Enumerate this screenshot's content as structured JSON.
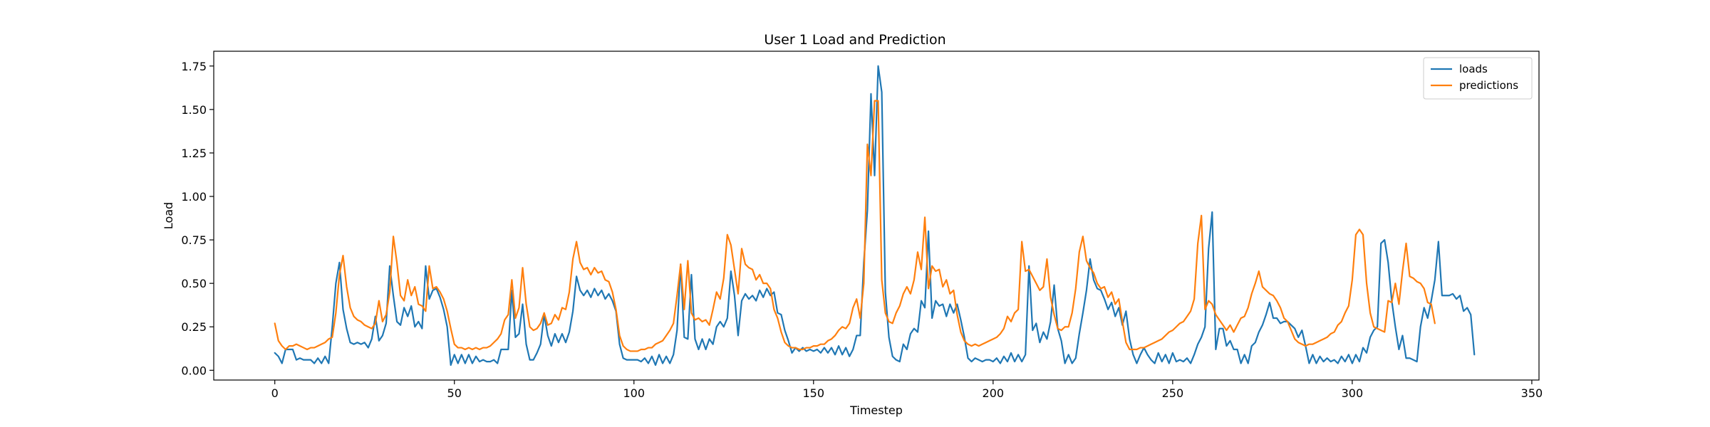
{
  "chart_data": {
    "type": "line",
    "title": "User 1 Load and Prediction",
    "xlabel": "Timestep",
    "ylabel": "Load",
    "xlim": [
      -17,
      352
    ],
    "ylim": [
      -0.056,
      1.835
    ],
    "xticks": [
      0,
      50,
      100,
      150,
      200,
      250,
      300,
      350
    ],
    "yticks": [
      0.0,
      0.25,
      0.5,
      0.75,
      1.0,
      1.25,
      1.5,
      1.75
    ],
    "grid": false,
    "legend_position": "top-right",
    "series": [
      {
        "name": "loads",
        "color": "#1f77b4",
        "x_start": 0,
        "x_step": 1,
        "values": [
          0.1,
          0.08,
          0.04,
          0.12,
          0.12,
          0.12,
          0.06,
          0.07,
          0.06,
          0.06,
          0.06,
          0.04,
          0.07,
          0.04,
          0.08,
          0.04,
          0.25,
          0.5,
          0.62,
          0.35,
          0.24,
          0.16,
          0.15,
          0.16,
          0.15,
          0.16,
          0.13,
          0.18,
          0.31,
          0.17,
          0.2,
          0.27,
          0.6,
          0.43,
          0.28,
          0.26,
          0.36,
          0.31,
          0.37,
          0.25,
          0.28,
          0.24,
          0.6,
          0.41,
          0.46,
          0.47,
          0.42,
          0.35,
          0.25,
          0.03,
          0.09,
          0.04,
          0.09,
          0.04,
          0.09,
          0.04,
          0.08,
          0.05,
          0.06,
          0.05,
          0.05,
          0.06,
          0.04,
          0.12,
          0.12,
          0.12,
          0.46,
          0.19,
          0.21,
          0.38,
          0.15,
          0.06,
          0.06,
          0.1,
          0.15,
          0.32,
          0.2,
          0.14,
          0.21,
          0.16,
          0.21,
          0.16,
          0.22,
          0.34,
          0.54,
          0.46,
          0.43,
          0.46,
          0.42,
          0.47,
          0.43,
          0.46,
          0.41,
          0.44,
          0.4,
          0.34,
          0.15,
          0.07,
          0.06,
          0.06,
          0.06,
          0.06,
          0.05,
          0.07,
          0.04,
          0.08,
          0.03,
          0.09,
          0.04,
          0.08,
          0.04,
          0.09,
          0.23,
          0.61,
          0.19,
          0.18,
          0.55,
          0.18,
          0.12,
          0.18,
          0.12,
          0.18,
          0.15,
          0.25,
          0.28,
          0.25,
          0.3,
          0.57,
          0.43,
          0.2,
          0.4,
          0.44,
          0.41,
          0.43,
          0.4,
          0.46,
          0.42,
          0.47,
          0.43,
          0.45,
          0.33,
          0.32,
          0.23,
          0.17,
          0.1,
          0.13,
          0.11,
          0.13,
          0.11,
          0.12,
          0.11,
          0.12,
          0.1,
          0.13,
          0.1,
          0.13,
          0.09,
          0.14,
          0.09,
          0.13,
          0.08,
          0.12,
          0.2,
          0.2,
          0.62,
          0.92,
          1.59,
          1.12,
          1.75,
          1.6,
          0.45,
          0.19,
          0.08,
          0.06,
          0.05,
          0.15,
          0.12,
          0.21,
          0.24,
          0.22,
          0.4,
          0.36,
          0.8,
          0.3,
          0.4,
          0.37,
          0.38,
          0.31,
          0.38,
          0.33,
          0.38,
          0.29,
          0.19,
          0.07,
          0.05,
          0.07,
          0.06,
          0.05,
          0.06,
          0.06,
          0.05,
          0.07,
          0.04,
          0.08,
          0.05,
          0.1,
          0.05,
          0.09,
          0.05,
          0.09,
          0.6,
          0.23,
          0.27,
          0.16,
          0.22,
          0.18,
          0.28,
          0.49,
          0.24,
          0.17,
          0.04,
          0.09,
          0.04,
          0.07,
          0.21,
          0.33,
          0.46,
          0.64,
          0.52,
          0.47,
          0.46,
          0.41,
          0.35,
          0.39,
          0.31,
          0.36,
          0.26,
          0.34,
          0.18,
          0.09,
          0.04,
          0.09,
          0.13,
          0.09,
          0.06,
          0.04,
          0.1,
          0.05,
          0.09,
          0.04,
          0.1,
          0.05,
          0.06,
          0.05,
          0.07,
          0.04,
          0.09,
          0.15,
          0.19,
          0.25,
          0.7,
          0.91,
          0.12,
          0.24,
          0.24,
          0.14,
          0.17,
          0.12,
          0.12,
          0.04,
          0.09,
          0.04,
          0.14,
          0.16,
          0.22,
          0.26,
          0.32,
          0.39,
          0.3,
          0.3,
          0.27,
          0.28,
          0.28,
          0.26,
          0.24,
          0.19,
          0.23,
          0.14,
          0.04,
          0.09,
          0.04,
          0.08,
          0.05,
          0.07,
          0.05,
          0.06,
          0.04,
          0.08,
          0.05,
          0.09,
          0.04,
          0.09,
          0.05,
          0.13,
          0.1,
          0.19,
          0.23,
          0.25,
          0.73,
          0.75,
          0.62,
          0.4,
          0.25,
          0.12,
          0.2,
          0.07,
          0.07,
          0.06,
          0.05,
          0.25,
          0.36,
          0.3,
          0.4,
          0.52,
          0.74,
          0.43,
          0.43,
          0.43,
          0.44,
          0.41,
          0.43,
          0.34,
          0.36,
          0.32,
          0.09
        ]
      },
      {
        "name": "predictions",
        "color": "#ff7f0e",
        "x_start": 0,
        "x_step": 1,
        "values": [
          0.27,
          0.17,
          0.14,
          0.12,
          0.14,
          0.14,
          0.15,
          0.14,
          0.13,
          0.12,
          0.13,
          0.13,
          0.14,
          0.15,
          0.16,
          0.18,
          0.19,
          0.33,
          0.55,
          0.66,
          0.48,
          0.36,
          0.31,
          0.29,
          0.28,
          0.26,
          0.25,
          0.24,
          0.27,
          0.4,
          0.28,
          0.32,
          0.45,
          0.77,
          0.62,
          0.43,
          0.4,
          0.52,
          0.43,
          0.48,
          0.38,
          0.37,
          0.34,
          0.6,
          0.47,
          0.48,
          0.45,
          0.41,
          0.34,
          0.24,
          0.15,
          0.13,
          0.13,
          0.12,
          0.13,
          0.12,
          0.13,
          0.12,
          0.13,
          0.13,
          0.14,
          0.16,
          0.18,
          0.21,
          0.29,
          0.32,
          0.52,
          0.3,
          0.36,
          0.59,
          0.38,
          0.25,
          0.23,
          0.24,
          0.27,
          0.33,
          0.26,
          0.27,
          0.32,
          0.29,
          0.36,
          0.35,
          0.45,
          0.64,
          0.74,
          0.62,
          0.58,
          0.59,
          0.55,
          0.59,
          0.56,
          0.57,
          0.52,
          0.51,
          0.45,
          0.35,
          0.2,
          0.14,
          0.12,
          0.11,
          0.11,
          0.11,
          0.12,
          0.12,
          0.13,
          0.13,
          0.15,
          0.16,
          0.17,
          0.2,
          0.23,
          0.27,
          0.43,
          0.61,
          0.35,
          0.63,
          0.33,
          0.29,
          0.3,
          0.28,
          0.29,
          0.26,
          0.35,
          0.45,
          0.41,
          0.53,
          0.78,
          0.72,
          0.58,
          0.44,
          0.7,
          0.61,
          0.59,
          0.58,
          0.52,
          0.55,
          0.5,
          0.5,
          0.47,
          0.35,
          0.3,
          0.22,
          0.16,
          0.14,
          0.13,
          0.13,
          0.12,
          0.12,
          0.13,
          0.13,
          0.14,
          0.14,
          0.15,
          0.15,
          0.17,
          0.18,
          0.2,
          0.23,
          0.25,
          0.24,
          0.27,
          0.36,
          0.41,
          0.3,
          0.5,
          1.3,
          1.12,
          1.55,
          1.55,
          0.52,
          0.33,
          0.28,
          0.27,
          0.33,
          0.37,
          0.44,
          0.48,
          0.44,
          0.52,
          0.68,
          0.58,
          0.88,
          0.47,
          0.6,
          0.57,
          0.58,
          0.48,
          0.52,
          0.44,
          0.46,
          0.32,
          0.22,
          0.17,
          0.15,
          0.14,
          0.15,
          0.14,
          0.15,
          0.16,
          0.17,
          0.18,
          0.19,
          0.21,
          0.24,
          0.31,
          0.28,
          0.33,
          0.35,
          0.74,
          0.57,
          0.58,
          0.54,
          0.5,
          0.46,
          0.48,
          0.64,
          0.42,
          0.32,
          0.24,
          0.23,
          0.25,
          0.25,
          0.33,
          0.47,
          0.68,
          0.77,
          0.63,
          0.59,
          0.56,
          0.5,
          0.47,
          0.48,
          0.42,
          0.45,
          0.38,
          0.41,
          0.28,
          0.16,
          0.12,
          0.12,
          0.12,
          0.13,
          0.13,
          0.14,
          0.15,
          0.16,
          0.17,
          0.18,
          0.2,
          0.22,
          0.23,
          0.25,
          0.27,
          0.28,
          0.31,
          0.34,
          0.41,
          0.73,
          0.89,
          0.35,
          0.4,
          0.38,
          0.32,
          0.29,
          0.26,
          0.23,
          0.26,
          0.22,
          0.26,
          0.3,
          0.31,
          0.36,
          0.44,
          0.5,
          0.57,
          0.48,
          0.46,
          0.44,
          0.43,
          0.4,
          0.36,
          0.3,
          0.28,
          0.23,
          0.18,
          0.16,
          0.15,
          0.14,
          0.15,
          0.15,
          0.16,
          0.17,
          0.18,
          0.19,
          0.21,
          0.22,
          0.26,
          0.28,
          0.33,
          0.37,
          0.52,
          0.78,
          0.81,
          0.78,
          0.5,
          0.33,
          0.25,
          0.24,
          0.23,
          0.22,
          0.4,
          0.39,
          0.5,
          0.38,
          0.57,
          0.73,
          0.54,
          0.53,
          0.51,
          0.5,
          0.47,
          0.39,
          0.38,
          0.27
        ]
      }
    ]
  }
}
